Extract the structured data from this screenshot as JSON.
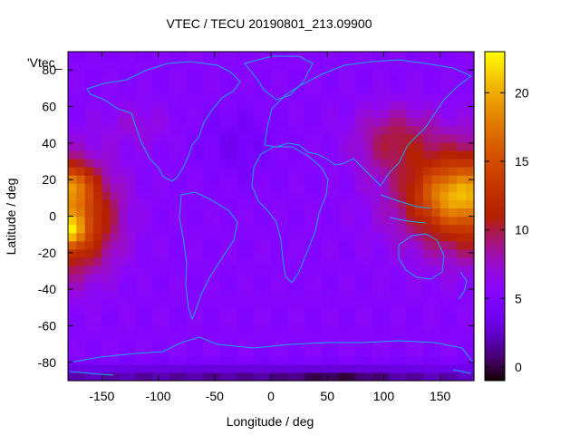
{
  "chart_data": {
    "type": "heatmap",
    "title": "VTEC / TECU 20190801_213.09900",
    "xlabel": "Longitude / deg",
    "ylabel": "Latitude / deg",
    "field_label": "'Vtec_",
    "xlim": [
      -180,
      180
    ],
    "ylim": [
      -90,
      90
    ],
    "x_ticks": [
      -150,
      -100,
      -50,
      0,
      50,
      100,
      150
    ],
    "y_ticks": [
      -80,
      -60,
      -40,
      -20,
      0,
      20,
      40,
      60,
      80
    ],
    "colorbar": {
      "range": [
        -1,
        23
      ],
      "ticks": [
        0,
        5,
        10,
        15,
        20
      ]
    },
    "grid": false,
    "approx_field": {
      "background": 5.5,
      "blobs": [
        {
          "lon": -180,
          "lat": 0,
          "slon": 38,
          "slat": 28,
          "amp": 12
        },
        {
          "lon": -175,
          "lat": 18,
          "slon": 14,
          "slat": 9,
          "amp": 6
        },
        {
          "lon": -178,
          "lat": -8,
          "slon": 12,
          "slat": 8,
          "amp": 6
        },
        {
          "lon": 180,
          "lat": 10,
          "slon": 60,
          "slat": 28,
          "amp": 11
        },
        {
          "lon": 160,
          "lat": 12,
          "slon": 30,
          "slat": 14,
          "amp": 5
        },
        {
          "lon": 110,
          "lat": 42,
          "slon": 35,
          "slat": 18,
          "amp": 4
        },
        {
          "lon": -120,
          "lat": 50,
          "slon": 30,
          "slat": 12,
          "amp": 1.5
        },
        {
          "lon": -30,
          "lat": 40,
          "slon": 35,
          "slat": 20,
          "amp": -1.5
        },
        {
          "lon": 0,
          "lat": -88,
          "slon": 400,
          "slat": 7,
          "amp": -4
        },
        {
          "lon": 60,
          "lat": -92,
          "slon": 40,
          "slat": 5,
          "amp": -3
        }
      ]
    }
  }
}
